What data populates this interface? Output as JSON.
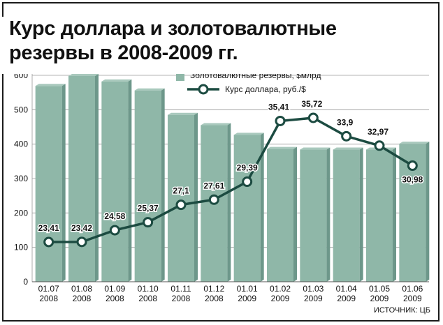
{
  "title": "Курс доллара и золотовалютные резервы в 2008-2009 гг.",
  "source": "ИСТОЧНИК: ЦБ",
  "colors": {
    "bar": "#8fb7a8",
    "bar_shadow": "#6d978a",
    "line": "#1c4b41",
    "grid": "#9a9a9a",
    "text": "#111111"
  },
  "chart_data": {
    "type": "bar+line",
    "title": "Курс доллара и золотовалютные резервы в 2008-2009 гг.",
    "categories": [
      [
        "01.07",
        "2008"
      ],
      [
        "01.08",
        "2008"
      ],
      [
        "01.09",
        "2008"
      ],
      [
        "01.10",
        "2008"
      ],
      [
        "01.11",
        "2008"
      ],
      [
        "01.12",
        "2008"
      ],
      [
        "01.01",
        "2009"
      ],
      [
        "01.02",
        "2009"
      ],
      [
        "01.03",
        "2009"
      ],
      [
        "01.04",
        "2009"
      ],
      [
        "01.05",
        "2009"
      ],
      [
        "01.06",
        "2009"
      ]
    ],
    "ylim": [
      0,
      600
    ],
    "yticks": [
      0,
      100,
      200,
      300,
      400,
      500,
      600
    ],
    "grid": true,
    "legend_position": "top",
    "series": [
      {
        "name": "Золотовалютные резервы, $млрд",
        "type": "bar",
        "values": [
          569,
          598,
          582,
          556,
          485,
          455,
          427,
          386,
          384,
          384,
          384,
          401
        ]
      },
      {
        "name": "Курс доллара, руб./$",
        "type": "line",
        "values": [
          23.41,
          23.42,
          24.58,
          25.37,
          27.1,
          27.61,
          29.39,
          35.41,
          35.72,
          33.9,
          32.97,
          30.98
        ],
        "labels": [
          "23,41",
          "23,42",
          "24,58",
          "25,37",
          "27,1",
          "27,61",
          "29,39",
          "35,41",
          "35,72",
          "33,9",
          "32,97",
          "30,98"
        ]
      }
    ]
  }
}
